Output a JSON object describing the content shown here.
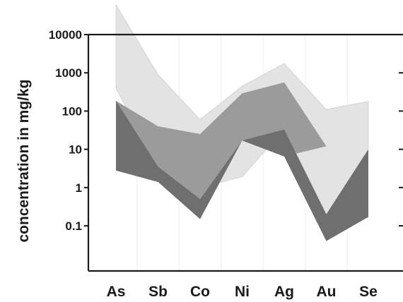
{
  "chart_data": {
    "type": "area",
    "title": "",
    "xlabel": "",
    "ylabel": "concentration in mg/kg",
    "yscale": "log",
    "ylim": [
      0.01,
      10000
    ],
    "yticks": [
      {
        "value": 10000,
        "label": "10000"
      },
      {
        "value": 1000,
        "label": "1000"
      },
      {
        "value": 100,
        "label": "100"
      },
      {
        "value": 10,
        "label": "10"
      },
      {
        "value": 1,
        "label": "1"
      },
      {
        "value": 0.1,
        "label": "0.1"
      }
    ],
    "categories": [
      "As",
      "Sb",
      "Co",
      "Ni",
      "Ag",
      "Au",
      "Se"
    ],
    "grid": "vertical-light",
    "legend": "none",
    "series": [
      {
        "color": "#e3e3e3",
        "lower": [
          390,
          3.5,
          1.0,
          1.9,
          33,
          0.2,
          10
        ],
        "upper": [
          60000,
          900,
          60,
          450,
          1750,
          110,
          180
        ]
      },
      {
        "color": "#9b9b9b",
        "lower": [
          2.8,
          1.4,
          0.5,
          17,
          6.5,
          12,
          30
        ],
        "upper": [
          185,
          40,
          25,
          290,
          560,
          12,
          30
        ]
      },
      {
        "color": "#6f6f6f",
        "lower": [
          2.8,
          1.4,
          0.15,
          17,
          6.5,
          0.04,
          0.17
        ],
        "upper": [
          185,
          3.5,
          0.5,
          17,
          33,
          0.2,
          10
        ]
      }
    ]
  }
}
